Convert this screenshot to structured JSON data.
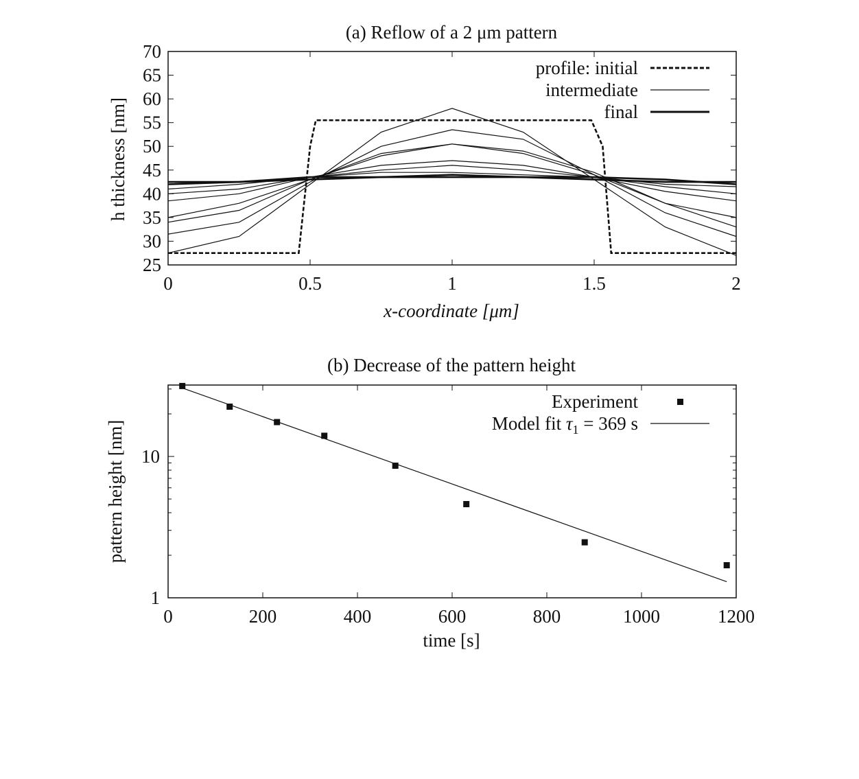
{
  "chart_data": [
    {
      "type": "line",
      "title": "(a) Reflow of a 2 μm pattern",
      "xlabel": "x-coordinate [μm]",
      "ylabel": "h thickness [nm]",
      "xlim": [
        0,
        2
      ],
      "ylim": [
        25,
        70
      ],
      "xticks": [
        0,
        0.5,
        1,
        1.5,
        2
      ],
      "xtick_labels": [
        "0",
        "0.5",
        "1",
        "1.5",
        "2"
      ],
      "yticks": [
        25,
        30,
        35,
        40,
        45,
        50,
        55,
        60,
        65,
        70
      ],
      "ytick_labels": [
        "25",
        "30",
        "35",
        "40",
        "45",
        "50",
        "55",
        "60",
        "65",
        "70"
      ],
      "grid": false,
      "legend_position": "top-right",
      "legend": [
        {
          "label": "profile: initial",
          "style": "dashed-thick"
        },
        {
          "label": "intermediate",
          "style": "thin"
        },
        {
          "label": "final",
          "style": "thick"
        }
      ],
      "series": [
        {
          "legend": "initial",
          "style": "dashed-thick",
          "x": [
            0,
            0.46,
            0.5,
            0.52,
            1.49,
            1.53,
            1.56,
            2
          ],
          "y": [
            27.5,
            27.5,
            50,
            55.5,
            55.5,
            50,
            27.5,
            27.5
          ]
        },
        {
          "style": "thin",
          "x": [
            0,
            0.25,
            0.5,
            0.75,
            1.0,
            1.25,
            1.5,
            1.75,
            2
          ],
          "y": [
            27.5,
            31,
            42,
            53,
            58,
            53,
            43,
            33,
            27
          ]
        },
        {
          "style": "thin",
          "x": [
            0,
            0.25,
            0.5,
            0.75,
            1.0,
            1.25,
            1.5,
            1.75,
            2
          ],
          "y": [
            31.5,
            34,
            42.5,
            50,
            53.5,
            51.5,
            44,
            36,
            31
          ]
        },
        {
          "style": "thin",
          "x": [
            0,
            0.25,
            0.5,
            0.75,
            1.0,
            1.25,
            1.5,
            1.75,
            2
          ],
          "y": [
            34,
            36.5,
            43,
            48.5,
            50.5,
            49,
            44.5,
            38,
            33
          ]
        },
        {
          "style": "thin",
          "x": [
            0,
            0.25,
            0.5,
            0.75,
            1.0,
            1.25,
            1.5,
            1.75,
            2
          ],
          "y": [
            35,
            38,
            43,
            48,
            50.5,
            48.5,
            44,
            38,
            35
          ]
        },
        {
          "style": "thin",
          "x": [
            0,
            0.25,
            0.5,
            0.75,
            1.0,
            1.25,
            1.5,
            1.75,
            2
          ],
          "y": [
            38.5,
            40,
            43.5,
            46,
            47,
            46,
            43.5,
            40.5,
            38.5
          ]
        },
        {
          "style": "thin",
          "x": [
            0,
            0.25,
            0.5,
            0.75,
            1.0,
            1.25,
            1.5,
            1.75,
            2
          ],
          "y": [
            40,
            41,
            43.5,
            45,
            46,
            45,
            43.5,
            41.5,
            40
          ]
        },
        {
          "style": "thin",
          "x": [
            0,
            0.25,
            0.5,
            0.75,
            1.0,
            1.25,
            1.5,
            1.75,
            2
          ],
          "y": [
            41,
            42,
            43.5,
            44.5,
            44.5,
            44,
            43.5,
            42,
            41.5
          ]
        },
        {
          "legend": "final",
          "style": "thick",
          "x": [
            0,
            0.25,
            0.5,
            0.75,
            1.0,
            1.25,
            1.5,
            1.75,
            2
          ],
          "y": [
            42.5,
            42.5,
            43,
            43.5,
            43.5,
            43.5,
            43,
            42.5,
            42.5
          ]
        },
        {
          "legend": "final",
          "style": "thick",
          "x": [
            0,
            0.25,
            0.5,
            0.75,
            1.0,
            1.25,
            1.5,
            1.75,
            2
          ],
          "y": [
            42,
            42.5,
            43.5,
            43.5,
            44,
            43.5,
            43.5,
            43,
            42
          ]
        }
      ]
    },
    {
      "type": "scatter",
      "title": "(b) Decrease of the pattern height",
      "xlabel": "time [s]",
      "ylabel": "pattern height [nm]",
      "xlim": [
        0,
        1200
      ],
      "ylim": [
        1,
        32
      ],
      "yscale": "log",
      "xticks": [
        0,
        200,
        400,
        600,
        800,
        1000,
        1200
      ],
      "xtick_labels": [
        "0",
        "200",
        "400",
        "600",
        "800",
        "1000",
        "1200"
      ],
      "yticks": [
        1,
        10
      ],
      "ytick_labels": [
        "1",
        "10"
      ],
      "grid": false,
      "legend_position": "top-right",
      "legend": [
        {
          "label": "Experiment",
          "style": "square-marker"
        },
        {
          "label": "Model fit τ1 = 369 s",
          "label_text": "Model fit",
          "label_tau": "τ",
          "label_sub": "1",
          "label_rest": " = 369 s",
          "style": "thin"
        }
      ],
      "series": [
        {
          "legend": "Experiment",
          "type": "scatter",
          "x": [
            30,
            130,
            230,
            330,
            480,
            630,
            880,
            1180
          ],
          "y": [
            31.5,
            22.5,
            17.5,
            14.0,
            8.6,
            4.6,
            2.47,
            1.7
          ]
        },
        {
          "legend": "Model fit",
          "type": "line",
          "x": [
            30,
            1180
          ],
          "y": [
            30.5,
            1.3
          ]
        }
      ]
    }
  ]
}
